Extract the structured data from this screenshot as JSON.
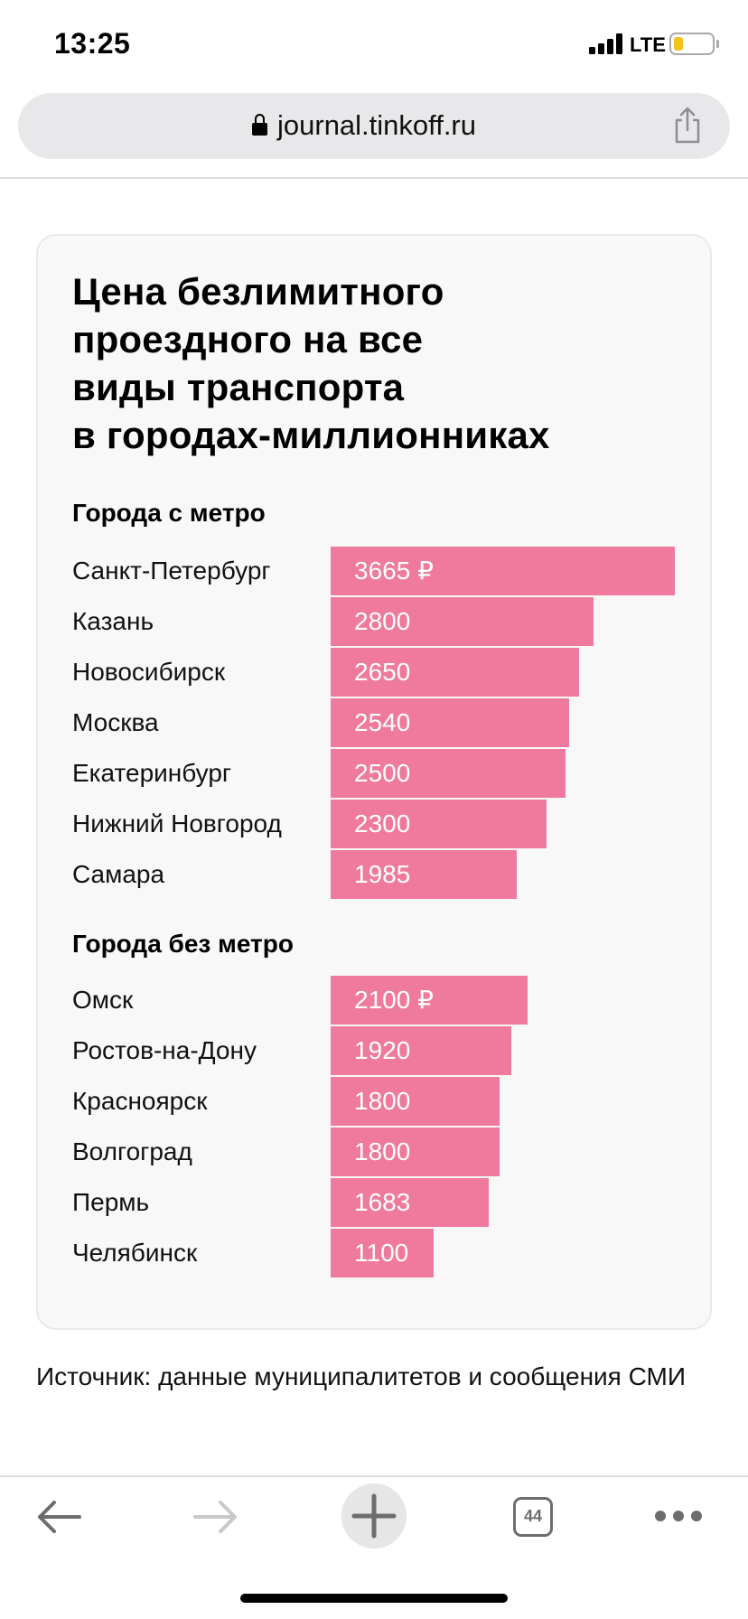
{
  "status_bar": {
    "time": "13:25",
    "network": "LTE"
  },
  "browser": {
    "url": "journal.tinkoff.ru",
    "tabs_count": "44"
  },
  "colors": {
    "bar": "#ef7a9d",
    "card_background": "#f8f8f8",
    "battery": "#f0c419"
  },
  "icons": [
    "lock-icon",
    "share-icon",
    "back-arrow-icon",
    "forward-arrow-icon",
    "plus-icon",
    "tabs-icon",
    "more-icon"
  ],
  "chart_data": {
    "type": "bar",
    "orientation": "horizontal",
    "title": "Цена безлимитного проездного на все виды транспорта в городах-миллионниках",
    "title_lines": [
      "Цена безлимитного",
      "проездного на все",
      "виды транспорта",
      "в городах-миллионниках"
    ],
    "groups": [
      {
        "name": "Города с метро",
        "categories": [
          "Санкт-Петербург",
          "Казань",
          "Новосибирск",
          "Москва",
          "Екатеринбург",
          "Нижний Новгород",
          "Самара"
        ],
        "values": [
          3665,
          2800,
          2650,
          2540,
          2500,
          2300,
          1985
        ],
        "labels": [
          "3665 ₽",
          "2800",
          "2650",
          "2540",
          "2500",
          "2300",
          "1985"
        ]
      },
      {
        "name": "Города без метро",
        "categories": [
          "Омск",
          "Ростов-на-Дону",
          "Красноярск",
          "Волгоград",
          "Пермь",
          "Челябинск"
        ],
        "values": [
          2100,
          1920,
          1800,
          1800,
          1683,
          1100
        ],
        "labels": [
          "2100 ₽",
          "1920",
          "1800",
          "1800",
          "1683",
          "1100"
        ]
      }
    ],
    "xlim": [
      0,
      3665
    ],
    "grid": false
  },
  "source_note": "Источник: данные муниципалитетов и сообщения СМИ"
}
